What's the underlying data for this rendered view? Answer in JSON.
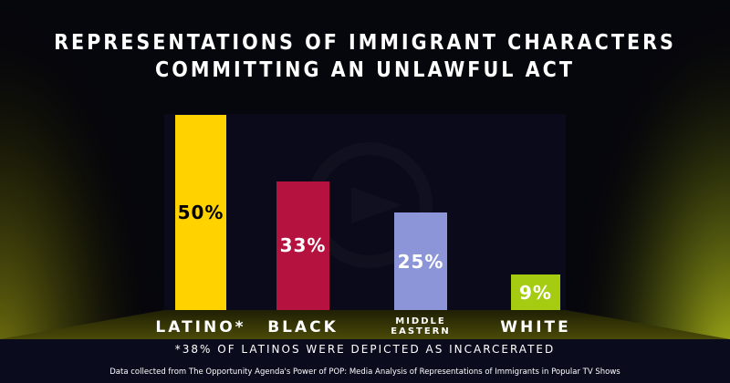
{
  "title_line1": "REPRESENTATIONS OF IMMIGRANT CHARACTERS",
  "title_line2": "COMMITTING AN UNLAWFUL ACT",
  "footnote": "*38% OF LATINOS WERE DEPICTED AS INCARCERATED",
  "source": "Data collected from The Opportunity Agenda's Power of POP: Media Analysis of Representations of Immigrants in Popular TV Shows",
  "colors": {
    "latino": "#ffd200",
    "black": "#b5123f",
    "middle_eastern": "#8c95d8",
    "white": "#a6cc12"
  },
  "chart_data": {
    "type": "bar",
    "title": "REPRESENTATIONS OF IMMIGRANT CHARACTERS COMMITTING AN UNLAWFUL ACT",
    "categories": [
      "LATINO*",
      "BLACK",
      "MIDDLE EASTERN",
      "WHITE"
    ],
    "values": [
      50,
      33,
      25,
      9
    ],
    "labels": [
      "50%",
      "33%",
      "25%",
      "9%"
    ],
    "ylim": [
      0,
      50
    ],
    "grid": false,
    "legend": "none"
  }
}
